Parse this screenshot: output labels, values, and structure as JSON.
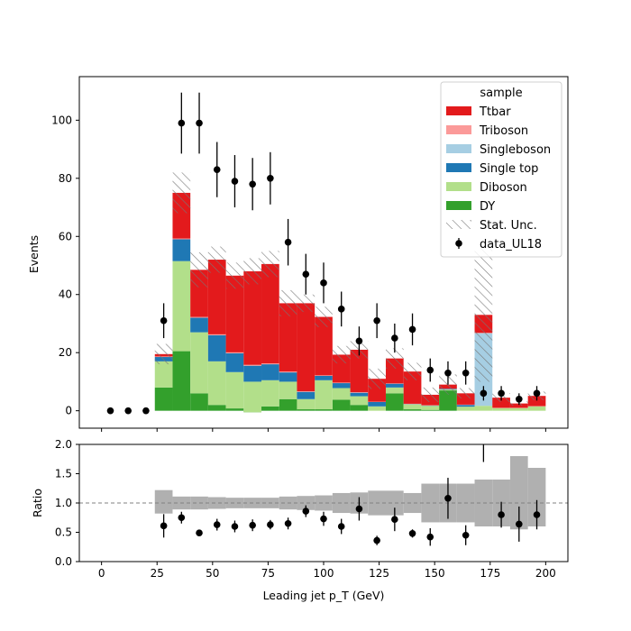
{
  "chart_data": [
    {
      "type": "bar",
      "ylabel": "Events",
      "ylim": [
        -6,
        115
      ],
      "xlim": [
        -10,
        210
      ],
      "xticks": [
        0,
        25,
        50,
        75,
        100,
        125,
        150,
        175,
        200
      ],
      "yticks": [
        0,
        20,
        40,
        60,
        80,
        100
      ],
      "bin_edges": [
        0,
        8,
        16,
        24,
        32,
        40,
        48,
        56,
        64,
        72,
        80,
        88,
        96,
        104,
        112,
        120,
        128,
        136,
        144,
        152,
        160,
        168,
        176,
        184,
        192,
        200
      ],
      "stack": "stacked",
      "legend": {
        "title": "sample",
        "position": "top-right",
        "entries": [
          "Ttbar",
          "Triboson",
          "Singleboson",
          "Single top",
          "Diboson",
          "DY",
          "Stat. Unc.",
          "data_UL18"
        ]
      },
      "series": [
        {
          "name": "DY",
          "color": "#33a02c",
          "values": [
            0,
            0,
            0,
            8,
            20.5,
            6,
            2,
            0.8,
            -0.5,
            1.5,
            4,
            0.5,
            0.5,
            3.8,
            2,
            0,
            6,
            0.5,
            0.3,
            7,
            0,
            0,
            0,
            0,
            0
          ]
        },
        {
          "name": "Diboson",
          "color": "#b2df8a",
          "values": [
            0,
            0,
            0,
            9,
            31,
            21,
            15,
            12.5,
            10.5,
            9,
            6,
            3.5,
            10,
            4,
            3,
            1.5,
            2,
            1.7,
            1.4,
            0.3,
            1.4,
            1.7,
            0.9,
            0.9,
            1.5
          ]
        },
        {
          "name": "Single top",
          "color": "#1f78b4",
          "values": [
            0,
            0,
            0,
            1.5,
            7.5,
            5,
            9,
            6.5,
            5.5,
            5.5,
            3.2,
            2.5,
            1.5,
            1.7,
            1.2,
            1.5,
            1.3,
            0.1,
            0.1,
            0.2,
            0.6,
            0,
            0,
            0,
            0
          ]
        },
        {
          "name": "Singleboson",
          "color": "#a6cee3",
          "values": [
            0,
            0,
            0,
            0,
            0,
            0,
            0,
            0,
            0,
            0,
            0,
            0,
            0,
            0,
            0,
            0,
            0,
            0,
            0,
            0,
            0,
            25,
            0,
            0,
            0
          ]
        },
        {
          "name": "Triboson",
          "color": "#fb9a99",
          "values": [
            0,
            0,
            0,
            0.2,
            0.3,
            0.3,
            0.3,
            0.3,
            0.3,
            0.3,
            0.3,
            0.2,
            0.2,
            0.2,
            0.2,
            0.1,
            0.1,
            0.1,
            0.1,
            0.1,
            0.1,
            0.1,
            0.1,
            0.1,
            0.1
          ]
        },
        {
          "name": "Ttbar",
          "color": "#e31a1c",
          "values": [
            0,
            0,
            0,
            0.8,
            15.7,
            16.2,
            25.7,
            26.4,
            32.2,
            34.2,
            23.5,
            30.3,
            20.1,
            9.6,
            14.6,
            7.9,
            8.6,
            11.1,
            3.6,
            1.4,
            3.9,
            6.2,
            3.5,
            1.5,
            3.5
          ]
        }
      ],
      "stat_unc_half_width": [
        0,
        0,
        0,
        3.5,
        7,
        6,
        4.5,
        4.5,
        4.5,
        4.5,
        4.5,
        3,
        3.5,
        3,
        3,
        3.5,
        3.5,
        3,
        2.5,
        3.5,
        1.8,
        23,
        1.5,
        0.7,
        1.5
      ],
      "data": {
        "name": "data_UL18",
        "x": [
          4,
          12,
          20,
          28,
          36,
          44,
          52,
          60,
          68,
          76,
          84,
          92,
          100,
          108,
          116,
          124,
          132,
          140,
          148,
          156,
          164,
          172,
          180,
          188,
          196
        ],
        "y": [
          0,
          0,
          0,
          31,
          99,
          99,
          83,
          79,
          78,
          80,
          58,
          47,
          44,
          35,
          24,
          31,
          25,
          28,
          14,
          13,
          13,
          6,
          6,
          4,
          6
        ],
        "yerr": [
          0,
          0,
          0,
          6,
          10.5,
          10.5,
          9.5,
          9,
          9,
          9,
          8,
          7,
          7,
          6,
          5,
          6,
          5,
          5.5,
          4,
          4,
          4,
          2.5,
          2.5,
          2,
          2.5
        ]
      },
      "colors": {
        "unc_hatch": "#777777",
        "data": "#000000"
      }
    },
    {
      "type": "scatter",
      "xlabel": "Leading jet  p_T (GeV)",
      "ylabel": "Ratio",
      "ylim": [
        0,
        2
      ],
      "xlim": [
        -10,
        210
      ],
      "xticks": [
        0,
        25,
        50,
        75,
        100,
        125,
        150,
        175,
        200
      ],
      "yticks": [
        "0.0",
        "0.5",
        "1.0",
        "1.5",
        "2.0"
      ],
      "reference_line": 1.0,
      "band_low": [
        null,
        null,
        null,
        0.82,
        0.89,
        0.89,
        0.9,
        0.91,
        0.91,
        0.91,
        0.89,
        0.88,
        0.87,
        0.83,
        0.82,
        0.79,
        0.79,
        0.83,
        0.67,
        0.67,
        0.67,
        0.6,
        0.6,
        0.55,
        0.6
      ],
      "band_high": [
        null,
        null,
        null,
        1.22,
        1.11,
        1.11,
        1.1,
        1.09,
        1.09,
        1.09,
        1.11,
        1.12,
        1.13,
        1.17,
        1.18,
        1.21,
        1.21,
        1.17,
        1.33,
        1.33,
        1.33,
        1.4,
        1.4,
        1.8,
        1.6
      ],
      "points": {
        "x": [
          28,
          36,
          44,
          52,
          60,
          68,
          76,
          84,
          92,
          100,
          108,
          116,
          124,
          132,
          140,
          148,
          156,
          164,
          172,
          180,
          188,
          196
        ],
        "y": [
          0.61,
          0.75,
          0.49,
          0.63,
          0.6,
          0.62,
          0.63,
          0.65,
          0.86,
          0.73,
          0.6,
          0.9,
          0.36,
          0.72,
          0.48,
          0.42,
          1.08,
          0.45,
          2.1,
          0.8,
          0.64,
          0.8
        ],
        "yerr": [
          0.2,
          0.1,
          0.05,
          0.1,
          0.1,
          0.1,
          0.08,
          0.1,
          0.1,
          0.12,
          0.13,
          0.2,
          0.08,
          0.2,
          0.07,
          0.15,
          0.35,
          0.17,
          0.4,
          0.22,
          0.3,
          0.25
        ]
      },
      "colors": {
        "band": "#b0b0b0",
        "reference": "#808080"
      }
    }
  ]
}
